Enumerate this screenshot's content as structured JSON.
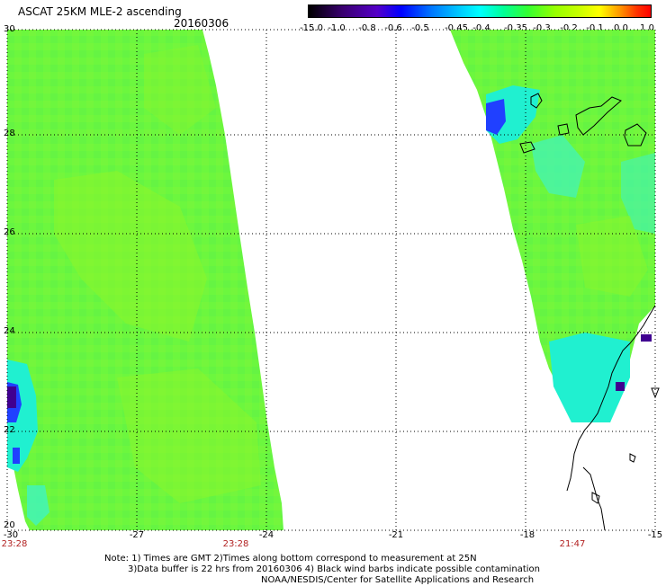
{
  "title": "ASCAT 25KM MLE-2 ascending",
  "date": "20160306",
  "colorbar": {
    "labels": [
      "-15.0",
      "-1.0",
      "-0.8",
      "-0.6",
      "-0.5",
      "-0.45",
      "-0.4",
      "-0.35",
      "-0.3",
      "-0.2",
      "-0.1",
      "0.0",
      "1.0"
    ],
    "colors": [
      "#000000",
      "#3a0070",
      "#5500c8",
      "#0000ff",
      "#0078ff",
      "#00c8ff",
      "#00ffff",
      "#00ff96",
      "#32ff32",
      "#96ff00",
      "#c8ff00",
      "#ffff00",
      "#ff9600",
      "#ff3200",
      "#ff0000"
    ]
  },
  "axes": {
    "y_labels": [
      "30",
      "28",
      "26",
      "24",
      "22",
      "20"
    ],
    "x_labels": [
      "-30",
      "-27",
      "-24",
      "-21",
      "-18",
      "-15"
    ]
  },
  "times": [
    "23:28",
    "23:28",
    "21:47"
  ],
  "notes": [
    "Note: 1) Times are GMT 2)Times along bottom correspond to measurement at 25N",
    "3)Data buffer is 22 hrs from 20160306 4) Black wind barbs indicate possible contamination",
    "NOAA/NESDIS/Center for Satellite Applications and Research"
  ],
  "palette": {
    "swath_main": "#6cf73e",
    "swath_alt": "#8cf52a",
    "swath_cyan": "#20f0d0",
    "swath_blue": "#2040ff",
    "swath_dark": "#400090"
  }
}
